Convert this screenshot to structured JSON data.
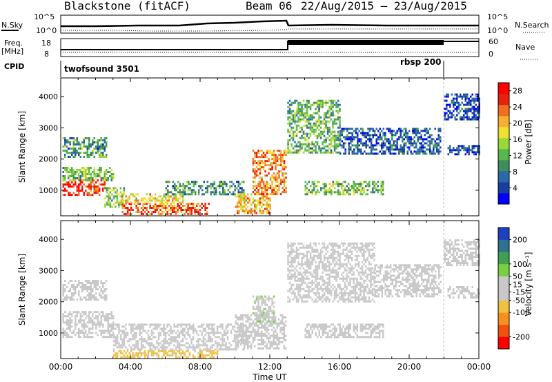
{
  "header": {
    "title": "Blackstone (fitACF)",
    "beam": "Beam 06",
    "date_range": "22/Aug/2015 – 23/Aug/2015"
  },
  "top_panels": {
    "nsky_label": "N.Sky",
    "nsky_ticks": [
      "10^5",
      "10^0"
    ],
    "nsearch_label": "N.Search",
    "freq_label": "Freq.",
    "freq_unit": "[MHz]",
    "freq_ticks": [
      "18",
      "8"
    ],
    "nave_label": "Nave",
    "nave_ticks": [
      "60",
      "0"
    ],
    "cpid_label": "CPID",
    "cpid_modes": [
      {
        "name": "twofsound 3501",
        "start_hour": 0,
        "end_hour": 22
      },
      {
        "name": "rbsp 200",
        "start_hour": 22,
        "end_hour": 24
      }
    ]
  },
  "colors": {
    "power_scale": [
      "#0000ff",
      "#1a3fa0",
      "#2a6aa8",
      "#3f8c5c",
      "#56b84a",
      "#9ad83a",
      "#f0e030",
      "#f7b030",
      "#f07020",
      "#e82010",
      "#ff0000"
    ],
    "velocity_scale": [
      "#ff0000",
      "#f05010",
      "#f89020",
      "#f0c040",
      "#c8c8c8",
      "#c8c8c8",
      "#78d040",
      "#40a050",
      "#307090",
      "#2040c0"
    ]
  },
  "chart_data": [
    {
      "type": "heatmap",
      "title": "",
      "xlabel": "Time UT",
      "ylabel": "Slant Range [km]",
      "x_ticks": [
        "00:00",
        "04:00",
        "08:00",
        "12:00",
        "16:00",
        "20:00",
        "00:00"
      ],
      "xlim_hours": [
        0,
        24
      ],
      "ylim": [
        180,
        4600
      ],
      "y_ticks": [
        1000,
        2000,
        3000,
        4000
      ],
      "colorbar": {
        "label": "Power [dB]",
        "ticks": [
          4,
          8,
          12,
          16,
          20,
          24,
          28
        ],
        "range": [
          0,
          30
        ]
      },
      "regions": [
        {
          "t0": 0.1,
          "t1": 2.5,
          "r0": 850,
          "r1": 1350,
          "value": 26
        },
        {
          "t0": 0.1,
          "t1": 3.0,
          "r0": 1300,
          "r1": 1750,
          "value": 13
        },
        {
          "t0": 0.1,
          "t1": 2.6,
          "r0": 2100,
          "r1": 2700,
          "value": 10
        },
        {
          "t0": 2.5,
          "t1": 3.6,
          "r0": 500,
          "r1": 1100,
          "value": 14
        },
        {
          "t0": 3.5,
          "t1": 8.5,
          "r0": 250,
          "r1": 600,
          "value": 24
        },
        {
          "t0": 3.5,
          "t1": 7.0,
          "r0": 600,
          "r1": 900,
          "value": 18
        },
        {
          "t0": 6.0,
          "t1": 10.5,
          "r0": 900,
          "r1": 1300,
          "value": 10
        },
        {
          "t0": 10.0,
          "t1": 12.0,
          "r0": 300,
          "r1": 900,
          "value": 20
        },
        {
          "t0": 11.0,
          "t1": 12.9,
          "r0": 900,
          "r1": 2300,
          "value": 22
        },
        {
          "t0": 13.0,
          "t1": 16.0,
          "r0": 2200,
          "r1": 3900,
          "value": 12
        },
        {
          "t0": 14.0,
          "t1": 18.5,
          "r0": 900,
          "r1": 1300,
          "value": 13
        },
        {
          "t0": 16.0,
          "t1": 21.8,
          "r0": 2200,
          "r1": 3000,
          "value": 6
        },
        {
          "t0": 22.0,
          "t1": 24.0,
          "r0": 3300,
          "r1": 4100,
          "value": 4
        },
        {
          "t0": 22.2,
          "t1": 24.0,
          "r0": 2150,
          "r1": 2450,
          "value": 5
        }
      ]
    },
    {
      "type": "heatmap",
      "title": "",
      "xlabel": "Time UT",
      "ylabel": "Slant Range [km]",
      "x_ticks": [
        "00:00",
        "04:00",
        "08:00",
        "12:00",
        "16:00",
        "20:00",
        "00:00"
      ],
      "xlim_hours": [
        0,
        24
      ],
      "ylim": [
        180,
        4600
      ],
      "y_ticks": [
        1000,
        2000,
        3000,
        4000
      ],
      "colorbar": {
        "label": "Velocity [m s⁻¹]",
        "ticks": [
          200,
          100,
          50,
          15,
          -15,
          -50,
          -100,
          -200
        ],
        "range": [
          -250,
          250
        ]
      },
      "regions": [
        {
          "t0": 0.1,
          "t1": 3.0,
          "r0": 850,
          "r1": 1700,
          "value": 0
        },
        {
          "t0": 0.1,
          "t1": 2.6,
          "r0": 2100,
          "r1": 2700,
          "value": -30
        },
        {
          "t0": 3.0,
          "t1": 9.0,
          "r0": 200,
          "r1": 450,
          "value": -60
        },
        {
          "t0": 3.0,
          "t1": 10.5,
          "r0": 450,
          "r1": 1300,
          "value": 0
        },
        {
          "t0": 10.0,
          "t1": 12.9,
          "r0": 500,
          "r1": 1600,
          "value": 0
        },
        {
          "t0": 11.0,
          "t1": 12.2,
          "r0": 1300,
          "r1": 2200,
          "value": 40
        },
        {
          "t0": 13.0,
          "t1": 18.0,
          "r0": 2000,
          "r1": 3900,
          "value": 0
        },
        {
          "t0": 14.0,
          "t1": 18.5,
          "r0": 900,
          "r1": 1300,
          "value": 0
        },
        {
          "t0": 18.0,
          "t1": 21.8,
          "r0": 2200,
          "r1": 3200,
          "value": 0
        },
        {
          "t0": 22.0,
          "t1": 24.0,
          "r0": 3200,
          "r1": 4000,
          "value": 0
        },
        {
          "t0": 22.2,
          "t1": 24.0,
          "r0": 2150,
          "r1": 2500,
          "value": 0
        }
      ]
    }
  ]
}
